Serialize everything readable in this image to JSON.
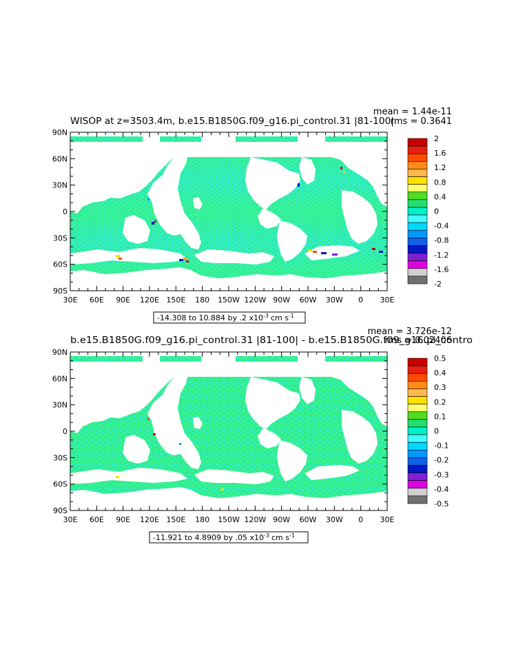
{
  "panels": [
    {
      "title": "WISOP at z=3503.4m, b.e15.B1850G.f09_g16.pi_control.31 |81-100|",
      "mean": "mean = 1.44e-11",
      "rms": "rms = 0.3641",
      "range_text": "-14.308 to 10.884 by .2 x10",
      "range_exp": "-3",
      "range_units": "cm s",
      "range_units_exp": "-1",
      "colorbar": {
        "labels": [
          "2",
          "1.6",
          "1.2",
          "0.8",
          "0.4",
          "0",
          "-0.4",
          "-0.8",
          "-1.2",
          "-1.6",
          "-2"
        ],
        "colors": [
          "#c80000",
          "#e82010",
          "#ff4a00",
          "#ff8c1a",
          "#ffb84d",
          "#ffe000",
          "#ffff70",
          "#50dd20",
          "#22e070",
          "#00f0c8",
          "#40ffff",
          "#00d8ff",
          "#0098ff",
          "#1060e8",
          "#0018c8",
          "#8020d0",
          "#e000e0",
          "#d0d0d0",
          "#707070"
        ]
      }
    },
    {
      "title": "b.e15.B1850G.f09_g16.pi_control.31 |81-100| - b.e15.B1850G.f09_g16.pi_contro",
      "mean": "mean = 3.726e-12",
      "rms": "rms = 0.02406",
      "range_text": "-11.921 to 4.8909 by .05 x10",
      "range_exp": "-3",
      "range_units": "cm s",
      "range_units_exp": "-1",
      "colorbar": {
        "labels": [
          "0.5",
          "0.4",
          "0.3",
          "0.2",
          "0.1",
          "0",
          "-0.1",
          "-0.2",
          "-0.3",
          "-0.4",
          "-0.5"
        ],
        "colors": [
          "#c80000",
          "#e82010",
          "#ff4a00",
          "#ff8c1a",
          "#ffb84d",
          "#ffe000",
          "#ffff70",
          "#50dd20",
          "#22e070",
          "#00f0c8",
          "#40ffff",
          "#00d8ff",
          "#0098ff",
          "#1060e8",
          "#0018c8",
          "#8020d0",
          "#e000e0",
          "#d0d0d0",
          "#707070"
        ]
      }
    }
  ],
  "lat_labels": [
    "90N",
    "60N",
    "30N",
    "0",
    "30S",
    "60S",
    "90S"
  ],
  "lon_labels": [
    "30E",
    "60E",
    "90E",
    "120E",
    "150E",
    "180",
    "150W",
    "120W",
    "90W",
    "60W",
    "30W",
    "0",
    "30E"
  ],
  "map_colors": {
    "ocean_main": "#33ee88",
    "ocean_alt": "#33eedd",
    "land": "#ffffff"
  }
}
